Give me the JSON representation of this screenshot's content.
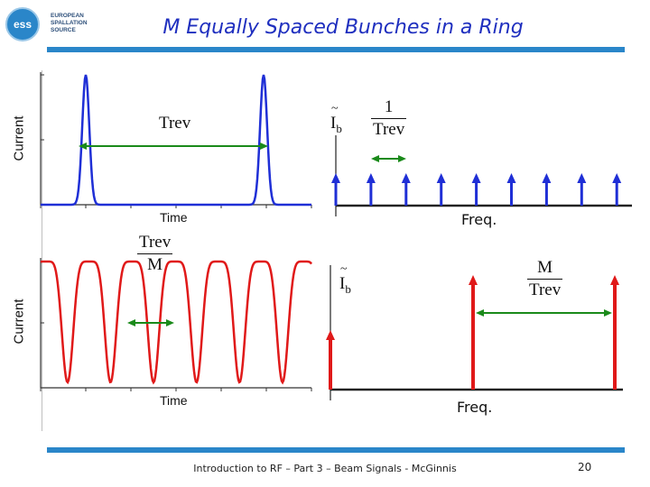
{
  "logo": {
    "mark": "ess",
    "lines": [
      "EUROPEAN",
      "SPALLATION",
      "SOURCE"
    ]
  },
  "title": "M Equally Spaced Bunches in a Ring",
  "top_left_plot": {
    "ylabel": "Current",
    "xlabel": "Time",
    "spacing_label": "Trev",
    "pulses_at": [
      0.0,
      1.0
    ],
    "color": "#1f2fd6"
  },
  "top_right_plot": {
    "ylabel_symbol": "I",
    "ylabel_sub": "b",
    "frac_num": "1",
    "frac_den": "Trev",
    "xlabel": "Freq.",
    "line_count": 9,
    "color": "#1f2fd6"
  },
  "bottom_left_plot": {
    "ylabel": "Current",
    "xlabel": "Time",
    "frac_num": "Trev",
    "frac_den": "M",
    "pulse_count": 8,
    "color": "#e01919"
  },
  "bottom_right_plot": {
    "ylabel_symbol": "I",
    "ylabel_sub": "b",
    "frac_num": "M",
    "frac_den": "Trev",
    "xlabel": "Freq.",
    "line_count": 3,
    "color": "#e01919"
  },
  "arrow_color": "#1a8a1a",
  "footer": "Introduction to RF – Part 3 – Beam Signals - McGinnis",
  "page_number": "20"
}
